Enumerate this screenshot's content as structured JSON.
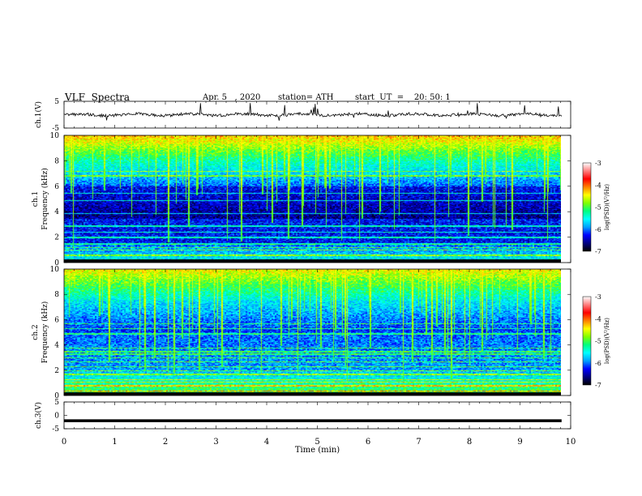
{
  "header": {
    "title": "VLF  Spectra",
    "date": "Apr. 5   , 2020",
    "station": "station= ATH",
    "start": "start  UT  =    20: 50: 1"
  },
  "chart_data": [
    {
      "type": "line",
      "name": "ch1-waveform",
      "ylabel": "ch.1(V)",
      "ylim": [
        -5,
        5
      ],
      "yticks": [
        "5",
        "-5"
      ],
      "xlim": [
        0,
        10
      ],
      "baseline": 0,
      "color": "#000000"
    },
    {
      "type": "heatmap",
      "name": "ch1-spectrogram",
      "ylabel_top": "ch.1",
      "ylabel": "Frequency  (kHz)",
      "ylim": [
        0,
        10
      ],
      "yticks": [
        "0",
        "2",
        "4",
        "6",
        "8",
        "10"
      ],
      "xlim": [
        0,
        9.8
      ],
      "colorbar": {
        "label": "log(PSD)(V²/Hz)",
        "range": [
          -7,
          -3
        ],
        "ticks": [
          "-3",
          "-4",
          "-5",
          "-6",
          "-7"
        ],
        "colors": [
          "#000000",
          "#000080",
          "#0000ff",
          "#00a0ff",
          "#00ffff",
          "#00ff80",
          "#80ff00",
          "#ffff00",
          "#ff8000",
          "#ff0000",
          "#ff8080",
          "#ffffff"
        ]
      }
    },
    {
      "type": "heatmap",
      "name": "ch2-spectrogram",
      "ylabel_top": "ch.2",
      "ylabel": "Frequency  (kHz)",
      "ylim": [
        0,
        10
      ],
      "yticks": [
        "0",
        "2",
        "4",
        "6",
        "8",
        "10"
      ],
      "xlim": [
        0,
        9.8
      ],
      "colorbar": {
        "label": "log(PSD)(V²/Hz)",
        "range": [
          -7,
          -3
        ],
        "ticks": [
          "-3",
          "-4",
          "-5",
          "-6",
          "-7"
        ]
      }
    },
    {
      "type": "line",
      "name": "ch3-waveform",
      "ylabel": "ch.3(V)",
      "ylim": [
        -5,
        5
      ],
      "yticks": [
        "5",
        "0",
        "-5"
      ],
      "xlim": [
        0,
        10
      ],
      "baseline": -2,
      "xlabel": "Time  (min)",
      "xticks": [
        "0",
        "1",
        "2",
        "3",
        "4",
        "5",
        "6",
        "7",
        "8",
        "9",
        "10"
      ],
      "color": "#000000"
    }
  ]
}
